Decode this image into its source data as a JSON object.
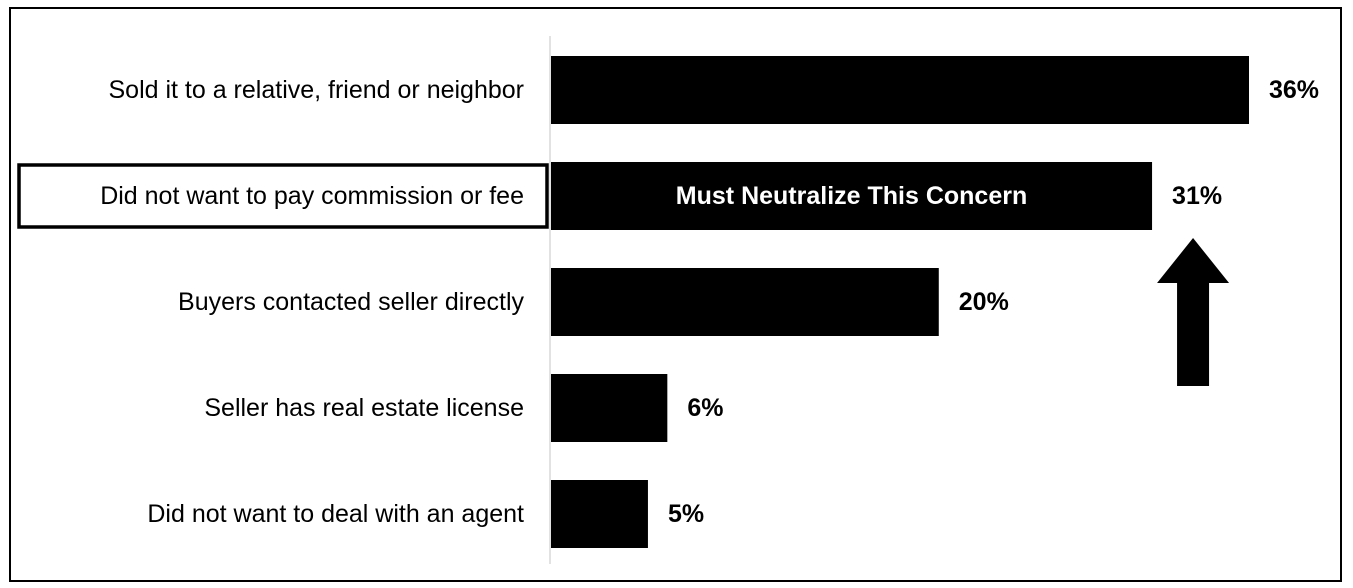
{
  "chart_data": {
    "type": "bar",
    "orientation": "horizontal",
    "categories": [
      "Sold it to a relative, friend or neighbor",
      "Did not want to pay commission or fee",
      "Buyers contacted seller directly",
      "Seller has real estate license",
      "Did not want to deal with an agent"
    ],
    "values": [
      36,
      31,
      20,
      6,
      5
    ],
    "value_labels": [
      "36%",
      "31%",
      "20%",
      "6%",
      "5%"
    ],
    "unit": "%",
    "xlim": [
      0,
      36
    ],
    "grid": false,
    "legend": "none",
    "title": "",
    "xlabel": "",
    "ylabel": "",
    "highlighted_category": "Did not want to pay commission or fee",
    "annotation": {
      "text": "Must Neutralize This Concern",
      "category": "Did not want to pay commission or fee",
      "arrow": "up"
    },
    "colors": {
      "bar": "#000000",
      "annotation_text": "#ffffff",
      "axis": "#d9d9d9"
    }
  }
}
